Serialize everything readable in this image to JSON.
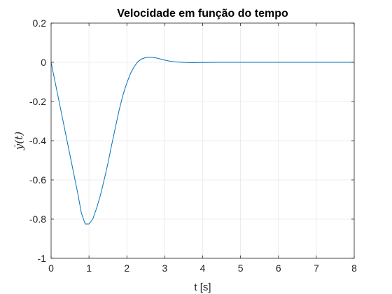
{
  "chart_data": {
    "type": "line",
    "title": "Velocidade em função do tempo",
    "xlabel": "t [s]",
    "ylabel": "ẏ(t)",
    "xlim": [
      0,
      8
    ],
    "ylim": [
      -1,
      0.2
    ],
    "xticks": [
      0,
      1,
      2,
      3,
      4,
      5,
      6,
      7,
      8
    ],
    "xtick_labels": [
      "0",
      "1",
      "2",
      "3",
      "4",
      "5",
      "6",
      "7",
      "8"
    ],
    "yticks": [
      -1,
      -0.8,
      -0.6,
      -0.4,
      -0.2,
      0,
      0.2
    ],
    "ytick_labels": [
      "-1",
      "-0.8",
      "-0.6",
      "-0.4",
      "-0.2",
      "0",
      "0.2"
    ],
    "grid": true,
    "line_color": "#0072BD",
    "series": [
      {
        "x": [
          0,
          0.1,
          0.2,
          0.3,
          0.4,
          0.5,
          0.6,
          0.7,
          0.8,
          0.9,
          1.0,
          1.1,
          1.2,
          1.3,
          1.4,
          1.5,
          1.6,
          1.7,
          1.8,
          1.9,
          2.0,
          2.1,
          2.2,
          2.3,
          2.4,
          2.5,
          2.6,
          2.7,
          2.8,
          2.9,
          3.0,
          3.1,
          3.2,
          3.3,
          3.4,
          3.5,
          3.6,
          3.7,
          3.8,
          3.9,
          4.0,
          4.2,
          4.4,
          4.6,
          5.0,
          6.0,
          7.0,
          8.0
        ],
        "y": [
          0,
          -0.095,
          -0.19,
          -0.285,
          -0.38,
          -0.475,
          -0.57,
          -0.665,
          -0.77,
          -0.825,
          -0.825,
          -0.8,
          -0.745,
          -0.68,
          -0.6,
          -0.515,
          -0.42,
          -0.33,
          -0.24,
          -0.165,
          -0.105,
          -0.055,
          -0.02,
          0.005,
          0.018,
          0.024,
          0.026,
          0.025,
          0.021,
          0.016,
          0.011,
          0.007,
          0.004,
          0.002,
          0.0005,
          -0.0005,
          -0.001,
          -0.0012,
          -0.0012,
          -0.001,
          -0.0008,
          -0.0004,
          -0.0002,
          0,
          0,
          0,
          0,
          0
        ]
      }
    ]
  }
}
